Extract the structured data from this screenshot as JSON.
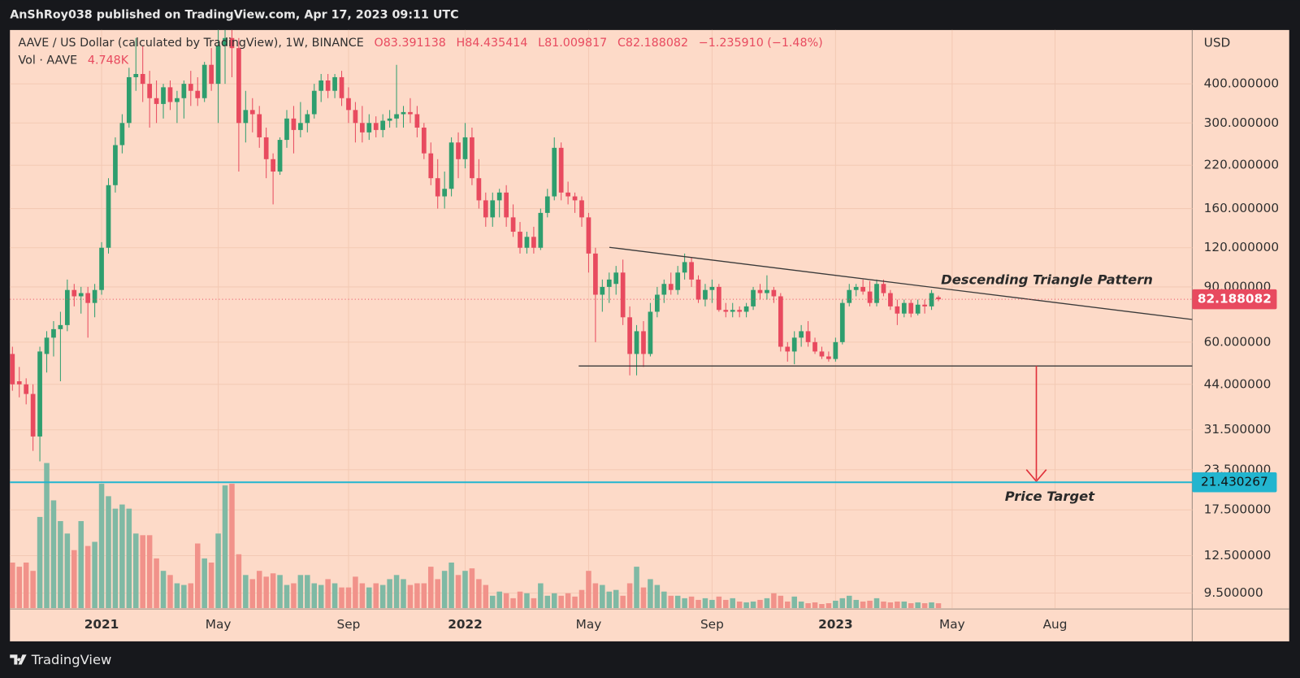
{
  "header": {
    "publisher": "AnShRoy038 published on TradingView.com, Apr 17, 2023 09:11 UTC"
  },
  "footer": {
    "brand": "TradingView"
  },
  "chart_data": {
    "type": "candlestick",
    "title": "AAVE / US Dollar (calculated by TradingView), 1W, BINANCE",
    "ohlc_text": {
      "open": "O83.391138",
      "high": "H84.435414",
      "low": "L81.009817",
      "close": "C82.188082",
      "change": "−1.235910 (−1.48%)"
    },
    "volume_title": "Vol · AAVE",
    "volume_text": "4.748K",
    "y_axis_label": "USD",
    "log_scale": true,
    "grid": true,
    "up_color": "#2e9e6e",
    "down_color": "#e84a5f",
    "volume_up_color": "#7fb9a4",
    "volume_down_color": "#f1928a",
    "ylim": [
      8.5,
      594
    ],
    "yticks": [
      {
        "value": 400,
        "label": "400.000000"
      },
      {
        "value": 300,
        "label": "300.000000"
      },
      {
        "value": 220,
        "label": "220.000000"
      },
      {
        "value": 160,
        "label": "160.000000"
      },
      {
        "value": 120,
        "label": "120.000000"
      },
      {
        "value": 90,
        "label": "90.000000"
      },
      {
        "value": 60,
        "label": "60.000000"
      },
      {
        "value": 44,
        "label": "44.000000"
      },
      {
        "value": 31.5,
        "label": "31.500000"
      },
      {
        "value": 23.5,
        "label": "23.500000"
      },
      {
        "value": 17.5,
        "label": "17.500000"
      },
      {
        "value": 12.5,
        "label": "12.500000"
      },
      {
        "value": 9.5,
        "label": "9.500000"
      }
    ],
    "categories": [
      null,
      null,
      null,
      null,
      null,
      null,
      null,
      null,
      null,
      null,
      null,
      null,
      null,
      "2021",
      null,
      null,
      null,
      null,
      null,
      null,
      null,
      null,
      null,
      null,
      null,
      null,
      null,
      null,
      null,
      null,
      "May",
      null,
      null,
      null,
      null,
      null,
      null,
      null,
      null,
      null,
      null,
      null,
      null,
      null,
      null,
      null,
      null,
      null,
      null,
      "Sep",
      null,
      null,
      null,
      null,
      null,
      null,
      null,
      null,
      null,
      null,
      null,
      null,
      null,
      null,
      null,
      null,
      "2022",
      null,
      null,
      null,
      null,
      null,
      null,
      null,
      null,
      null,
      null,
      null,
      null,
      null,
      null,
      null,
      null,
      null,
      "May",
      null,
      null,
      null,
      null,
      null,
      null,
      null,
      null,
      null,
      null,
      null,
      null,
      null,
      null,
      null,
      null,
      null,
      "Sep",
      null,
      null,
      null,
      null,
      null,
      null,
      null,
      null,
      null,
      null,
      null,
      null,
      null,
      null,
      null,
      null,
      null,
      "2023",
      null,
      null,
      null,
      null,
      null,
      null,
      null,
      null,
      null,
      null,
      null,
      null,
      null,
      null,
      null,
      null,
      "May",
      null,
      null,
      null,
      null,
      null,
      null,
      null,
      null,
      null,
      null,
      null,
      null,
      null,
      null,
      "Aug",
      null,
      null,
      null,
      null,
      null,
      null,
      null,
      null,
      null,
      null,
      null,
      null,
      null,
      null,
      null,
      null,
      null,
      null,
      null
    ],
    "open": [
      55,
      45,
      44,
      41,
      30,
      55,
      62,
      66,
      68,
      88,
      84,
      86,
      80,
      88,
      120,
      190,
      255,
      300,
      420,
      430,
      400,
      360,
      345,
      390,
      350,
      360,
      400,
      380,
      360,
      460,
      400,
      530,
      560,
      520,
      300,
      330,
      320,
      270,
      230,
      210,
      265,
      310,
      285,
      300,
      320,
      380,
      410,
      380,
      420,
      360,
      330,
      300,
      280,
      300,
      285,
      305,
      310,
      320,
      325,
      320,
      290,
      240,
      200,
      175,
      185,
      260,
      230,
      270,
      200,
      170,
      150,
      170,
      180,
      150,
      135,
      120,
      130,
      120,
      155,
      175,
      250,
      180,
      175,
      170,
      150,
      115,
      85,
      90,
      92,
      100,
      72,
      55,
      65,
      55,
      75,
      85,
      92,
      88,
      100,
      108,
      95,
      82,
      88,
      90,
      76,
      75,
      76,
      75,
      78,
      88,
      86,
      88,
      84,
      58,
      56,
      62,
      65,
      60,
      56,
      54,
      53,
      60,
      80,
      88,
      90,
      87,
      80,
      92,
      86,
      78,
      74,
      80,
      74,
      79,
      78,
      83.391138,
      null,
      null,
      null,
      null,
      null,
      null,
      null,
      null,
      null,
      null,
      null,
      null,
      null,
      null,
      null,
      null,
      null,
      null,
      null,
      null,
      null,
      null,
      null,
      null,
      null,
      null,
      null,
      null,
      null,
      null,
      null,
      null,
      null,
      null,
      null,
      null
    ],
    "high": [
      58,
      50,
      46,
      44,
      58,
      65,
      70,
      75,
      95,
      92,
      90,
      90,
      92,
      125,
      200,
      270,
      320,
      450,
      560,
      530,
      440,
      410,
      400,
      410,
      380,
      410,
      440,
      420,
      470,
      520,
      600,
      620,
      600,
      560,
      380,
      360,
      340,
      290,
      240,
      270,
      330,
      340,
      350,
      330,
      400,
      430,
      430,
      430,
      440,
      390,
      350,
      340,
      320,
      315,
      320,
      330,
      460,
      340,
      360,
      340,
      300,
      260,
      230,
      210,
      270,
      280,
      300,
      290,
      230,
      180,
      180,
      185,
      190,
      165,
      145,
      135,
      140,
      160,
      185,
      270,
      260,
      195,
      180,
      175,
      155,
      120,
      95,
      100,
      105,
      110,
      78,
      68,
      70,
      80,
      90,
      95,
      100,
      105,
      115,
      112,
      98,
      92,
      95,
      92,
      80,
      80,
      78,
      80,
      90,
      92,
      98,
      90,
      86,
      60,
      65,
      68,
      70,
      62,
      58,
      56,
      62,
      82,
      92,
      92,
      95,
      94,
      95,
      95,
      88,
      82,
      82,
      82,
      82,
      82,
      88,
      84.435414,
      null,
      null,
      null,
      null,
      null,
      null,
      null,
      null,
      null,
      null,
      null,
      null,
      null,
      null,
      null,
      null,
      null,
      null,
      null,
      null,
      null,
      null,
      null,
      null,
      null,
      null,
      null,
      null,
      null,
      null,
      null,
      null,
      null,
      null,
      null,
      null
    ],
    "low": [
      42,
      40,
      38,
      27,
      25,
      48,
      54,
      45,
      65,
      78,
      74,
      62,
      72,
      85,
      115,
      180,
      240,
      290,
      380,
      350,
      290,
      300,
      310,
      330,
      300,
      310,
      340,
      340,
      350,
      380,
      300,
      400,
      420,
      210,
      260,
      280,
      250,
      200,
      165,
      205,
      250,
      240,
      270,
      280,
      310,
      350,
      360,
      360,
      340,
      300,
      260,
      260,
      265,
      270,
      270,
      290,
      290,
      290,
      300,
      270,
      230,
      190,
      160,
      160,
      175,
      200,
      215,
      190,
      160,
      140,
      140,
      150,
      140,
      130,
      115,
      115,
      115,
      118,
      150,
      170,
      170,
      165,
      155,
      140,
      100,
      60,
      75,
      80,
      85,
      68,
      47,
      47,
      50,
      54,
      72,
      80,
      85,
      85,
      95,
      90,
      80,
      78,
      80,
      75,
      72,
      72,
      72,
      72,
      76,
      82,
      82,
      80,
      56,
      52,
      51,
      58,
      58,
      55,
      53,
      52,
      52,
      59,
      78,
      84,
      85,
      78,
      78,
      84,
      76,
      68,
      72,
      72,
      73,
      74,
      76,
      81.009817,
      null,
      null,
      null,
      null,
      null,
      null,
      null,
      null,
      null,
      null,
      null,
      null,
      null,
      null,
      null,
      null,
      null,
      null,
      null,
      null,
      null,
      null,
      null,
      null,
      null,
      null,
      null,
      null,
      null,
      null,
      null,
      null,
      null,
      null,
      null,
      null
    ],
    "close": [
      44,
      44,
      41,
      30,
      56,
      62,
      66,
      68,
      88,
      84,
      86,
      80,
      88,
      120,
      190,
      255,
      300,
      420,
      430,
      400,
      360,
      345,
      390,
      350,
      360,
      400,
      380,
      360,
      460,
      400,
      530,
      560,
      520,
      300,
      330,
      320,
      270,
      230,
      210,
      265,
      310,
      285,
      300,
      320,
      380,
      410,
      380,
      420,
      360,
      330,
      300,
      280,
      300,
      285,
      305,
      310,
      320,
      325,
      320,
      290,
      240,
      200,
      175,
      185,
      260,
      230,
      270,
      200,
      170,
      150,
      170,
      180,
      150,
      135,
      120,
      130,
      120,
      155,
      175,
      250,
      180,
      175,
      170,
      150,
      115,
      85,
      90,
      95,
      100,
      72,
      55,
      65,
      55,
      75,
      85,
      92,
      88,
      100,
      108,
      95,
      82,
      88,
      90,
      76,
      75,
      76,
      75,
      78,
      88,
      86,
      88,
      84,
      58,
      56,
      62,
      65,
      60,
      56,
      54,
      53,
      60,
      80,
      88,
      90,
      87,
      80,
      92,
      86,
      78,
      74,
      80,
      74,
      79,
      78,
      86,
      82.188082,
      null,
      null,
      null,
      null,
      null,
      null,
      null,
      null,
      null,
      null,
      null,
      null,
      null,
      null,
      null,
      null,
      null,
      null,
      null,
      null,
      null,
      null,
      null,
      null,
      null,
      null,
      null,
      null,
      null,
      null,
      null,
      null,
      null,
      null,
      null,
      null
    ],
    "volume": [
      44,
      40,
      44,
      36,
      88,
      140,
      104,
      84,
      72,
      56,
      84,
      60,
      64,
      120,
      108,
      96,
      100,
      96,
      72,
      70.4,
      70.4,
      48,
      36,
      32,
      24,
      22.4,
      24,
      62.4,
      48,
      44,
      72,
      118.4,
      120,
      52,
      32,
      28,
      36,
      30.4,
      33.6,
      32,
      22.4,
      24,
      32,
      32,
      24,
      22.4,
      28,
      24,
      20,
      20,
      30.4,
      24,
      20,
      24,
      22.4,
      28,
      32,
      28,
      22.4,
      24,
      24,
      40,
      28,
      36,
      44,
      32,
      36,
      38.4,
      28,
      22.4,
      12,
      16,
      14.4,
      9.6,
      16,
      14.4,
      9.6,
      24,
      12,
      14.4,
      12,
      14.4,
      11.2,
      17.6,
      36,
      24,
      22.4,
      16,
      17.6,
      12,
      24,
      40,
      20,
      28,
      22.4,
      16,
      12,
      12,
      9.6,
      11.2,
      8,
      9.6,
      8,
      11.2,
      8,
      9.6,
      6.4,
      5.6,
      6.4,
      8,
      9.6,
      14.4,
      12,
      6.4,
      11.2,
      6.4,
      4.8,
      5.6,
      4,
      4.8,
      7.2,
      9.6,
      12,
      8,
      6.4,
      7.2,
      9.6,
      6.4,
      5.6,
      6.4,
      6.4,
      4.8,
      5.6,
      4.8,
      5.6,
      4.748,
      null,
      null,
      null,
      null,
      null,
      null,
      null,
      null,
      null,
      null,
      null,
      null,
      null,
      null,
      null,
      null,
      null,
      null,
      null,
      null,
      null,
      null,
      null,
      null,
      null,
      null,
      null,
      null,
      null,
      null,
      null,
      null,
      null,
      null,
      null,
      null
    ],
    "target": 21.430267,
    "annotations": [
      "Descending Triangle Pattern",
      "Price Target"
    ]
  }
}
